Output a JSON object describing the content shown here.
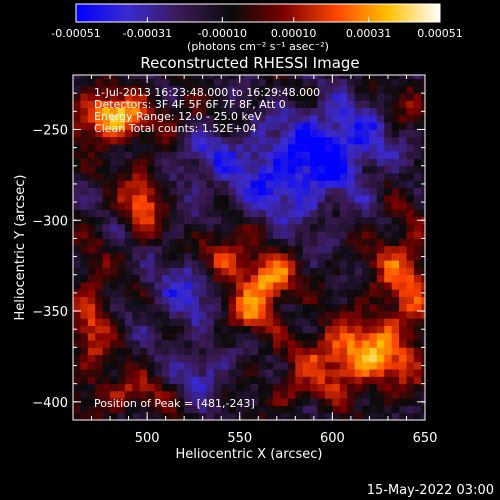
{
  "colorbar": {
    "tick_labels": [
      "-0.00051",
      "-0.00031",
      "-0.00010",
      "0.00010",
      "0.00031",
      "0.00051"
    ],
    "tick_values": [
      -0.00051,
      -0.00031,
      -0.0001,
      0.0001,
      0.00031,
      0.00051
    ],
    "range": [
      -0.00051,
      0.00051
    ],
    "unit_label": "(photons cm⁻² s⁻¹ asec⁻²)",
    "colormap": [
      "#0000ff",
      "#3a2ad0",
      "#3a1a55",
      "#0a0a0a",
      "#7a0000",
      "#ff4500",
      "#ffc000",
      "#ffffff"
    ]
  },
  "info": {
    "time_range": "1-Jul-2013 16:23:48.000 to 16:29:48.000",
    "detectors": "Detectors: 3F 4F 5F 6F 7F 8F, Att 0",
    "energy": "Energy Range: 12.0 - 25.0 keV",
    "clean": "Clean   Total counts: 1.52E+04",
    "peak": "Position of Peak = [481,-243]"
  },
  "footer": {
    "date": "15-May-2022 03:00"
  },
  "chart_data": {
    "type": "heatmap",
    "title": "Reconstructed RHESSI Image",
    "xlabel": "Heliocentric X (arcsec)",
    "ylabel": "Heliocentric Y (arcsec)",
    "xlim": [
      460,
      650
    ],
    "ylim": [
      -410,
      -220
    ],
    "x_ticks": [
      500,
      550,
      600,
      650
    ],
    "x_tick_labels": [
      "500",
      "550",
      "600",
      "650"
    ],
    "y_ticks": [
      -250,
      -300,
      -350,
      -400
    ],
    "y_tick_labels": [
      "−250",
      "−300",
      "−350",
      "−400"
    ],
    "peak": [
      481,
      -243
    ],
    "blobs": [
      {
        "x": 481,
        "y": -243,
        "amp": 0.00051,
        "sx": 14,
        "sy": 9
      },
      {
        "x": 566,
        "y": -332,
        "amp": 0.00048,
        "sx": 9,
        "sy": 9
      },
      {
        "x": 543,
        "y": -318,
        "amp": 0.0003,
        "sx": 10,
        "sy": 10
      },
      {
        "x": 555,
        "y": -350,
        "amp": 0.00032,
        "sx": 9,
        "sy": 8
      },
      {
        "x": 497,
        "y": -290,
        "amp": 0.00036,
        "sx": 7,
        "sy": 12
      },
      {
        "x": 615,
        "y": -375,
        "amp": 0.00044,
        "sx": 22,
        "sy": 13
      },
      {
        "x": 638,
        "y": -330,
        "amp": 0.0003,
        "sx": 12,
        "sy": 22
      },
      {
        "x": 470,
        "y": -355,
        "amp": 0.00028,
        "sx": 7,
        "sy": 22
      },
      {
        "x": 490,
        "y": -395,
        "amp": 0.00022,
        "sx": 14,
        "sy": 7
      },
      {
        "x": 520,
        "y": -240,
        "amp": 0.00015,
        "sx": 8,
        "sy": 6
      },
      {
        "x": 575,
        "y": -275,
        "amp": -0.0003,
        "sx": 25,
        "sy": 18
      },
      {
        "x": 605,
        "y": -255,
        "amp": -0.00028,
        "sx": 20,
        "sy": 15
      },
      {
        "x": 520,
        "y": -340,
        "amp": -0.00022,
        "sx": 12,
        "sy": 14
      },
      {
        "x": 530,
        "y": -385,
        "amp": -0.0002,
        "sx": 10,
        "sy": 10
      },
      {
        "x": 640,
        "y": -235,
        "amp": 0.00014,
        "sx": 8,
        "sy": 10
      },
      {
        "x": 580,
        "y": -395,
        "amp": 0.00016,
        "sx": 10,
        "sy": 6
      },
      {
        "x": 530,
        "y": -265,
        "amp": -0.00018,
        "sx": 10,
        "sy": 10
      }
    ]
  }
}
